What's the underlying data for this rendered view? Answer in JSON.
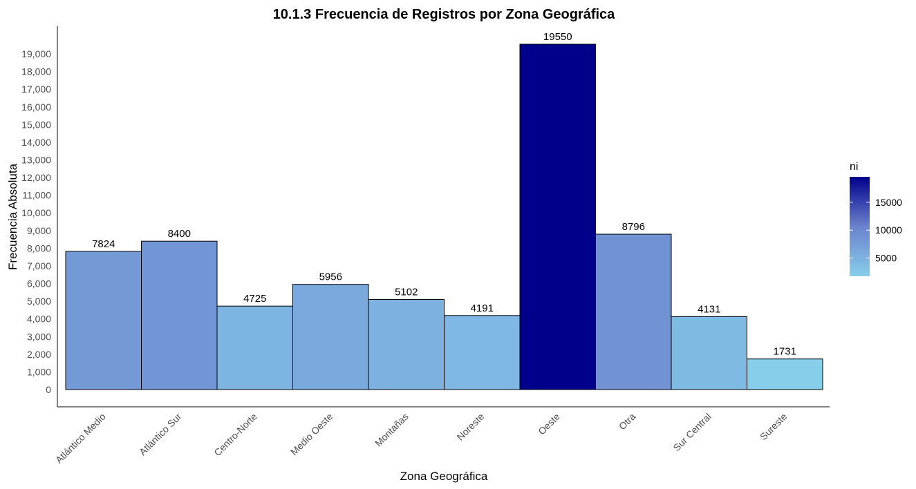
{
  "chart_data": {
    "type": "bar",
    "title": "10.1.3 Frecuencia de Registros por Zona Geográfica",
    "xlabel": "Zona Geográfica",
    "ylabel": "Frecuencia Absoluta",
    "categories": [
      "Atlántico Medio",
      "Atlántico Sur",
      "Centro-Norte",
      "Medio Oeste",
      "Montañas",
      "Noreste",
      "Oeste",
      "Otra",
      "Sur Central",
      "Sureste"
    ],
    "values": [
      7824,
      8400,
      4725,
      5956,
      5102,
      4191,
      19550,
      8796,
      4131,
      1731
    ],
    "data_labels": [
      "7824",
      "8400",
      "4725",
      "5956",
      "5102",
      "4191",
      "19550",
      "8796",
      "4131",
      "1731"
    ],
    "y_ticks": [
      0,
      1000,
      2000,
      3000,
      4000,
      5000,
      6000,
      7000,
      8000,
      9000,
      10000,
      11000,
      12000,
      13000,
      14000,
      15000,
      16000,
      17000,
      18000,
      19000
    ],
    "y_tick_labels": [
      "0",
      "1,000",
      "2,000",
      "3,000",
      "4,000",
      "5,000",
      "6,000",
      "7,000",
      "8,000",
      "9,000",
      "10,000",
      "11,000",
      "12,000",
      "13,000",
      "14,000",
      "15,000",
      "16,000",
      "17,000",
      "18,000",
      "19,000"
    ],
    "ylim": [
      0,
      19550
    ],
    "grid": false,
    "color_scale": {
      "title": "ni",
      "low_color": "#87ceeb",
      "high_color": "#00008b",
      "min": 1731,
      "max": 19550,
      "ticks": [
        5000,
        10000,
        15000
      ],
      "tick_labels": [
        "5000",
        "10000",
        "15000"
      ]
    },
    "legend_position": "right"
  }
}
